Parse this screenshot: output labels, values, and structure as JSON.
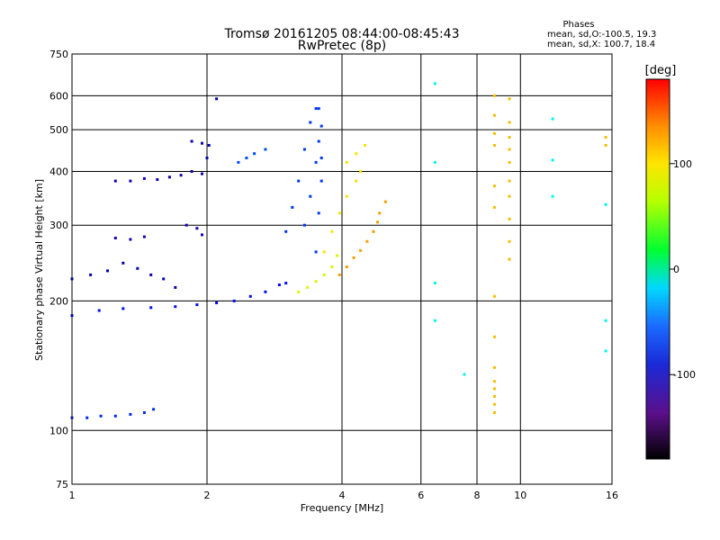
{
  "chart_data": {
    "type": "scatter",
    "title": "Tromsø 20161205 08:44:00-08:45:43",
    "subtitle": "RwPretec (8p)",
    "info": {
      "heading": "Phases",
      "line1": "mean, sd,O:-100.5, 19.3",
      "line2": "mean, sd,X: 100.7, 18.4"
    },
    "xlabel": "Frequency [MHz]",
    "ylabel": "Stationary phase Virtual Height [km]",
    "xscale": "log",
    "yscale": "log",
    "xlim": [
      1,
      16
    ],
    "ylim": [
      75,
      750
    ],
    "xticks": [
      1,
      2,
      4,
      6,
      8,
      10,
      16
    ],
    "yticks": [
      75,
      100,
      200,
      300,
      400,
      500,
      600,
      750
    ],
    "grid": true,
    "colorbar": {
      "label": "[deg]",
      "range": [
        -180,
        180
      ],
      "ticks": [
        100,
        0,
        -100
      ],
      "scheme": "rainbow"
    },
    "series": [
      {
        "points": [
          [
            1.0,
            107
          ],
          [
            1.08,
            107
          ],
          [
            1.16,
            108
          ],
          [
            1.25,
            108
          ],
          [
            1.35,
            109
          ],
          [
            1.45,
            110
          ],
          [
            1.52,
            112
          ]
        ],
        "phase": -115
      },
      {
        "points": [
          [
            1.0,
            185
          ],
          [
            1.15,
            190
          ],
          [
            1.3,
            192
          ],
          [
            1.5,
            193
          ],
          [
            1.7,
            194
          ],
          [
            1.9,
            196
          ],
          [
            2.1,
            198
          ],
          [
            2.3,
            200
          ],
          [
            2.5,
            205
          ],
          [
            2.7,
            210
          ],
          [
            2.9,
            218
          ],
          [
            3.0,
            220
          ]
        ],
        "phase": -125
      },
      {
        "points": [
          [
            1.25,
            380
          ],
          [
            1.35,
            380
          ],
          [
            1.45,
            385
          ],
          [
            1.55,
            383
          ],
          [
            1.65,
            388
          ],
          [
            1.75,
            392
          ],
          [
            1.85,
            400
          ],
          [
            1.95,
            395
          ]
        ],
        "phase": -135
      },
      {
        "points": [
          [
            1.25,
            280
          ],
          [
            1.35,
            278
          ],
          [
            1.45,
            282
          ],
          [
            1.8,
            300
          ],
          [
            1.9,
            295
          ],
          [
            1.95,
            285
          ]
        ],
        "phase": -140
      },
      {
        "points": [
          [
            1.0,
            225
          ],
          [
            1.1,
            230
          ],
          [
            1.2,
            235
          ],
          [
            1.3,
            245
          ],
          [
            1.4,
            238
          ],
          [
            1.5,
            230
          ],
          [
            1.6,
            225
          ],
          [
            1.7,
            215
          ]
        ],
        "phase": -130
      },
      {
        "points": [
          [
            1.85,
            470
          ],
          [
            1.95,
            465
          ],
          [
            2.02,
            460
          ],
          [
            2.1,
            590
          ],
          [
            2.0,
            430
          ]
        ],
        "phase": -130
      },
      {
        "points": [
          [
            2.35,
            420
          ],
          [
            2.45,
            430
          ],
          [
            2.55,
            440
          ],
          [
            2.7,
            450
          ]
        ],
        "phase": -105
      },
      {
        "points": [
          [
            3.0,
            290
          ],
          [
            3.1,
            330
          ],
          [
            3.2,
            380
          ],
          [
            3.3,
            450
          ],
          [
            3.4,
            520
          ],
          [
            3.5,
            560
          ],
          [
            3.3,
            300
          ],
          [
            3.4,
            350
          ],
          [
            3.5,
            420
          ],
          [
            3.55,
            470
          ],
          [
            3.6,
            510
          ],
          [
            3.5,
            260
          ],
          [
            3.55,
            320
          ],
          [
            3.6,
            380
          ],
          [
            3.6,
            430
          ],
          [
            3.55,
            560
          ]
        ],
        "phase": -112
      },
      {
        "points": [
          [
            3.2,
            210
          ],
          [
            3.35,
            215
          ],
          [
            3.5,
            222
          ],
          [
            3.65,
            230
          ],
          [
            3.8,
            240
          ],
          [
            3.9,
            255
          ]
        ],
        "phase": 95
      },
      {
        "points": [
          [
            3.65,
            260
          ],
          [
            3.8,
            290
          ],
          [
            3.95,
            320
          ],
          [
            4.1,
            350
          ],
          [
            4.3,
            380
          ],
          [
            4.4,
            400
          ],
          [
            4.1,
            420
          ],
          [
            4.3,
            440
          ],
          [
            4.5,
            460
          ]
        ],
        "phase": 108
      },
      {
        "points": [
          [
            3.95,
            230
          ],
          [
            4.1,
            240
          ],
          [
            4.25,
            252
          ],
          [
            4.4,
            262
          ],
          [
            4.55,
            275
          ],
          [
            4.7,
            290
          ],
          [
            4.8,
            305
          ],
          [
            4.85,
            320
          ],
          [
            5.0,
            340
          ]
        ],
        "phase": 130
      },
      {
        "points": [
          [
            6.45,
            640
          ],
          [
            6.45,
            420
          ],
          [
            6.45,
            220
          ],
          [
            6.45,
            180
          ],
          [
            7.5,
            135
          ],
          [
            11.8,
            530
          ],
          [
            11.8,
            350
          ],
          [
            11.8,
            425
          ],
          [
            15.5,
            180
          ],
          [
            15.5,
            153
          ],
          [
            15.5,
            335
          ]
        ],
        "phase": -50
      },
      {
        "points": [
          [
            8.75,
            600
          ],
          [
            8.75,
            540
          ],
          [
            8.75,
            490
          ],
          [
            8.75,
            460
          ],
          [
            8.75,
            370
          ],
          [
            8.75,
            330
          ],
          [
            8.75,
            205
          ],
          [
            8.75,
            165
          ],
          [
            8.75,
            140
          ],
          [
            8.75,
            130
          ],
          [
            8.75,
            125
          ],
          [
            8.75,
            120
          ],
          [
            8.75,
            115
          ],
          [
            8.75,
            110
          ],
          [
            9.45,
            590
          ],
          [
            9.45,
            520
          ],
          [
            9.45,
            480
          ],
          [
            9.45,
            450
          ],
          [
            9.45,
            420
          ],
          [
            9.45,
            380
          ],
          [
            9.45,
            350
          ],
          [
            9.45,
            310
          ],
          [
            9.45,
            275
          ],
          [
            9.45,
            250
          ],
          [
            15.5,
            480
          ],
          [
            15.5,
            460
          ]
        ],
        "phase": 120
      }
    ]
  }
}
